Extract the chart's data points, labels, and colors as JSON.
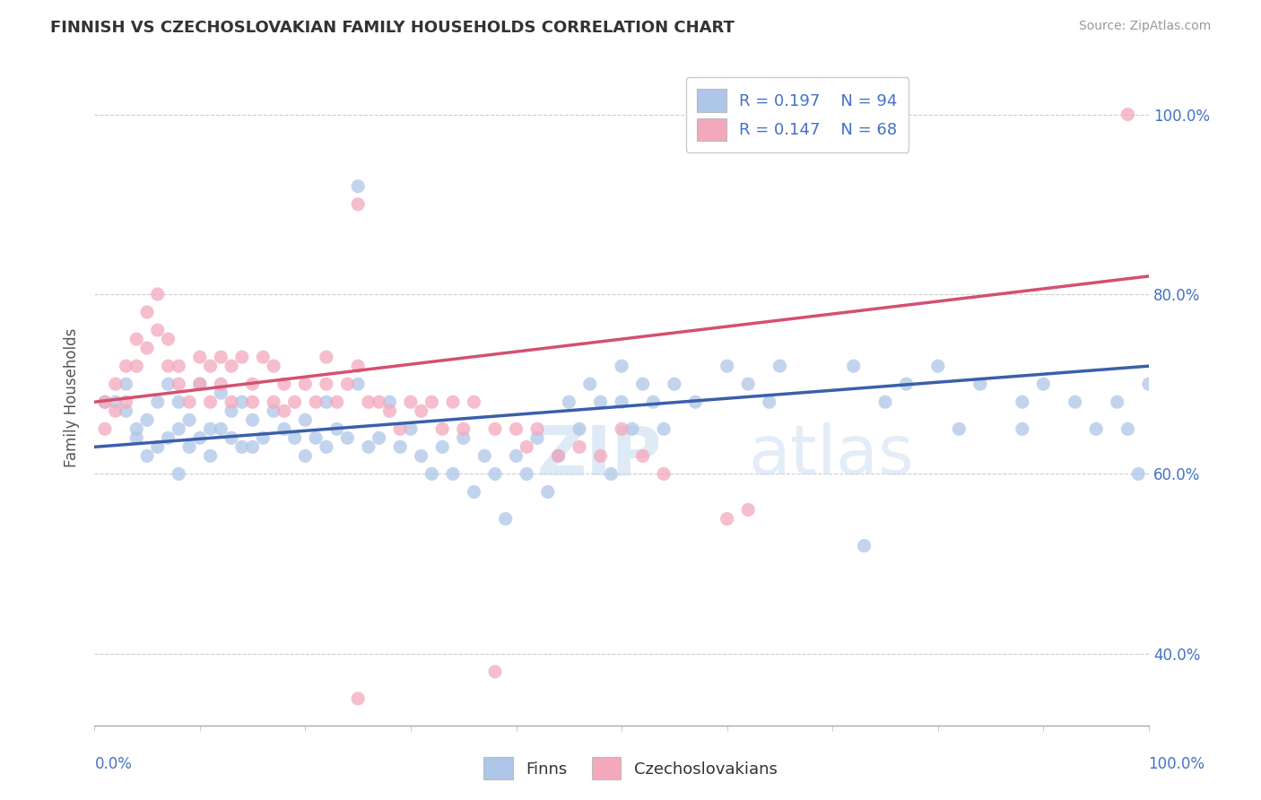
{
  "title": "FINNISH VS CZECHOSLOVAKIAN FAMILY HOUSEHOLDS CORRELATION CHART",
  "source": "Source: ZipAtlas.com",
  "ylabel": "Family Households",
  "xlim": [
    0,
    100
  ],
  "ylim": [
    32,
    105
  ],
  "ytick_values": [
    40,
    60,
    80,
    100
  ],
  "legend_r1": "R = 0.197",
  "legend_n1": "N = 94",
  "legend_r2": "R = 0.147",
  "legend_n2": "N = 68",
  "legend_label1": "Finns",
  "legend_label2": "Czechoslovakians",
  "finns_color": "#aec6e8",
  "czechoslovakians_color": "#f4a8bc",
  "finns_line_color": "#3a5faa",
  "czechoslovakians_line_color": "#d45070",
  "finns_line_start_y": 63,
  "finns_line_end_y": 72,
  "czech_line_start_y": 68,
  "czech_line_end_y": 82,
  "finns_x": [
    1,
    2,
    3,
    3,
    4,
    4,
    5,
    5,
    6,
    6,
    7,
    7,
    8,
    8,
    8,
    9,
    9,
    10,
    10,
    11,
    11,
    12,
    12,
    13,
    13,
    14,
    14,
    15,
    15,
    16,
    17,
    18,
    19,
    20,
    20,
    21,
    22,
    22,
    23,
    24,
    25,
    26,
    27,
    28,
    29,
    30,
    31,
    32,
    33,
    34,
    35,
    36,
    37,
    38,
    39,
    40,
    41,
    42,
    43,
    44,
    45,
    46,
    47,
    48,
    49,
    50,
    50,
    51,
    52,
    53,
    54,
    55,
    57,
    60,
    62,
    64,
    65,
    72,
    75,
    77,
    80,
    82,
    84,
    88,
    88,
    90,
    93,
    95,
    97,
    98,
    99,
    100,
    73,
    25
  ],
  "finns_y": [
    68,
    68,
    70,
    67,
    65,
    64,
    62,
    66,
    63,
    68,
    64,
    70,
    65,
    68,
    60,
    66,
    63,
    64,
    70,
    65,
    62,
    65,
    69,
    64,
    67,
    68,
    63,
    66,
    63,
    64,
    67,
    65,
    64,
    62,
    66,
    64,
    68,
    63,
    65,
    64,
    70,
    63,
    64,
    68,
    63,
    65,
    62,
    60,
    63,
    60,
    64,
    58,
    62,
    60,
    55,
    62,
    60,
    64,
    58,
    62,
    68,
    65,
    70,
    68,
    60,
    72,
    68,
    65,
    70,
    68,
    65,
    70,
    68,
    72,
    70,
    68,
    72,
    72,
    68,
    70,
    72,
    65,
    70,
    68,
    65,
    70,
    68,
    65,
    68,
    65,
    60,
    70,
    52,
    92
  ],
  "czech_x": [
    1,
    1,
    2,
    2,
    3,
    3,
    4,
    4,
    5,
    5,
    6,
    6,
    7,
    7,
    8,
    8,
    9,
    10,
    10,
    11,
    11,
    12,
    12,
    13,
    13,
    14,
    15,
    15,
    16,
    17,
    17,
    18,
    18,
    19,
    20,
    21,
    22,
    22,
    23,
    24,
    25,
    26,
    27,
    28,
    29,
    30,
    31,
    32,
    33,
    34,
    35,
    36,
    38,
    40,
    41,
    42,
    44,
    46,
    48,
    50,
    52,
    54,
    60,
    62,
    98,
    25,
    38,
    25
  ],
  "czech_y": [
    68,
    65,
    70,
    67,
    72,
    68,
    75,
    72,
    78,
    74,
    80,
    76,
    72,
    75,
    70,
    72,
    68,
    73,
    70,
    72,
    68,
    70,
    73,
    72,
    68,
    73,
    70,
    68,
    73,
    72,
    68,
    70,
    67,
    68,
    70,
    68,
    70,
    73,
    68,
    70,
    72,
    68,
    68,
    67,
    65,
    68,
    67,
    68,
    65,
    68,
    65,
    68,
    65,
    65,
    63,
    65,
    62,
    63,
    62,
    65,
    62,
    60,
    55,
    56,
    100,
    90,
    38,
    35
  ]
}
